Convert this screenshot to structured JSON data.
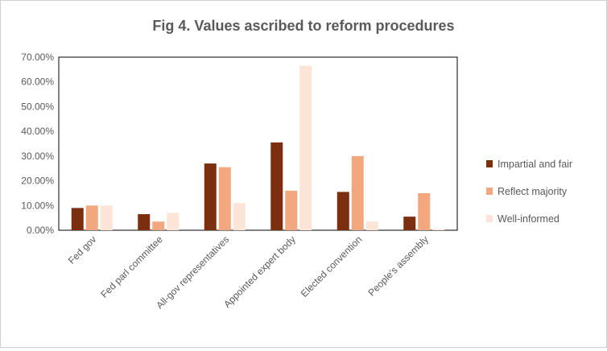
{
  "chart_data": {
    "type": "bar",
    "title": "Fig 4. Values ascribed to reform procedures",
    "xlabel": "",
    "ylabel": "",
    "categories": [
      "Fed gov",
      "Fed parl committee",
      "All-gov representatives",
      "Appointed expert body",
      "Elected  convention",
      "People's assembly"
    ],
    "series": [
      {
        "name": "Impartial and fair",
        "color": "#7b2f0f",
        "values": [
          0.09,
          0.065,
          0.27,
          0.355,
          0.155,
          0.055
        ]
      },
      {
        "name": "Reflect majority",
        "color": "#f2a77e",
        "values": [
          0.1,
          0.035,
          0.255,
          0.16,
          0.3,
          0.15
        ]
      },
      {
        "name": "Well-informed",
        "color": "#fce4d6",
        "values": [
          0.1,
          0.07,
          0.11,
          0.665,
          0.035,
          0.005
        ]
      }
    ],
    "ylim": [
      0,
      0.7
    ],
    "yticks": [
      "0.00%",
      "10.00%",
      "20.00%",
      "30.00%",
      "40.00%",
      "50.00%",
      "60.00%",
      "70.00%"
    ],
    "grid": false,
    "legend_position": "right"
  }
}
